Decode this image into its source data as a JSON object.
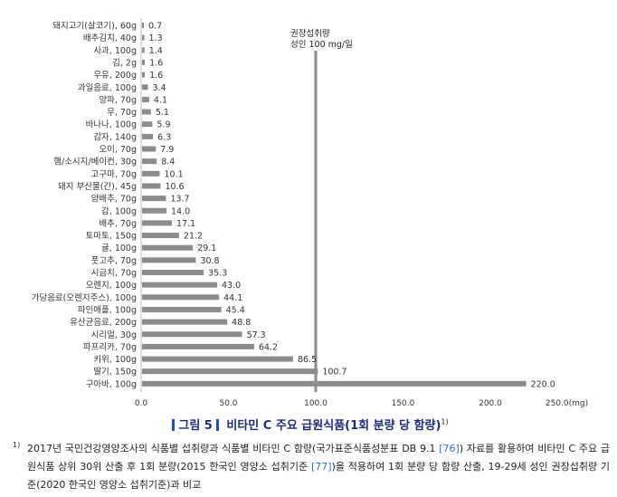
{
  "chart_data": {
    "type": "bar",
    "orientation": "horizontal",
    "categories": [
      "돼지고기(살코기), 60g",
      "배추김치, 40g",
      "사과, 100g",
      "김, 2g",
      "우유, 200g",
      "과일음료, 100g",
      "양파, 70g",
      "무, 70g",
      "바나나, 100g",
      "감자, 140g",
      "오이, 70g",
      "햄/소시지/베이컨, 30g",
      "고구마, 70g",
      "돼지 부산물(간), 45g",
      "양배추, 70g",
      "감, 100g",
      "배추, 70g",
      "토마토, 150g",
      "귤, 100g",
      "풋고추, 70g",
      "시금치, 70g",
      "오렌지, 100g",
      "가당음료(오렌지주스), 100g",
      "파인애플, 100g",
      "유산균음료, 200g",
      "시리얼, 30g",
      "파프리카, 70g",
      "키위, 100g",
      "딸기, 150g",
      "구아바, 100g"
    ],
    "values": [
      0.7,
      1.3,
      1.4,
      1.6,
      1.6,
      3.4,
      4.1,
      5.1,
      5.9,
      6.3,
      7.9,
      8.4,
      10.1,
      10.6,
      13.7,
      14.0,
      17.1,
      21.2,
      29.1,
      30.8,
      35.3,
      43.0,
      44.1,
      45.4,
      48.8,
      57.3,
      64.2,
      86.5,
      100.7,
      220.0
    ],
    "value_labels": [
      "0.7",
      "1.3",
      "1.4",
      "1.6",
      "1.6",
      "3.4",
      "4.1",
      "5.1",
      "5.9",
      "6.3",
      "7.9",
      "8.4",
      "10.1",
      "10.6",
      "13.7",
      "14.0",
      "17.1",
      "21.2",
      "29.1",
      "30.8",
      "35.3",
      "43.0",
      "44.1",
      "45.4",
      "48.8",
      "57.3",
      "64.2",
      "86.5",
      "100.7",
      "220.0"
    ],
    "xlim": [
      0,
      250
    ],
    "xticks": [
      0,
      50,
      100,
      150,
      200,
      250
    ],
    "xtick_labels": [
      "0.0",
      "50.0",
      "100.0",
      "150.0",
      "200.0",
      "250.0(mg)"
    ],
    "reference_line": {
      "value": 100,
      "label_line1": "권장섭취량",
      "label_line2": "성인 100 mg/일"
    },
    "grid": false,
    "legend": "none",
    "bar_color": "#8c8c8c",
    "reference_color": "#8c8c8c"
  },
  "figure_title": {
    "label": "그림 5",
    "text": "비타민 C 주요 급원식품(1회 분량 당 함량)",
    "note": "1)"
  },
  "footnote": {
    "number": "1)",
    "part1": "2017년 국민건강영양조사의 식품별 섭취량과 식품별 비타민 C 함량(국가표준식품성분표 DB 9.1 ",
    "ref1": "[76]",
    "part2": ") 자료를 활용하여 비타민 C 주요 급원식품 상위 30위 산출 후 1회 분량(2015 한국인 영양소 섭취기준 ",
    "ref2": "[77]",
    "part3": ")을 적용하여 1회 분량 당 함량 산출, 19-29세 성인 권장섭취량 기준(2020 한국인 영양소 섭취기준)과 비교"
  }
}
